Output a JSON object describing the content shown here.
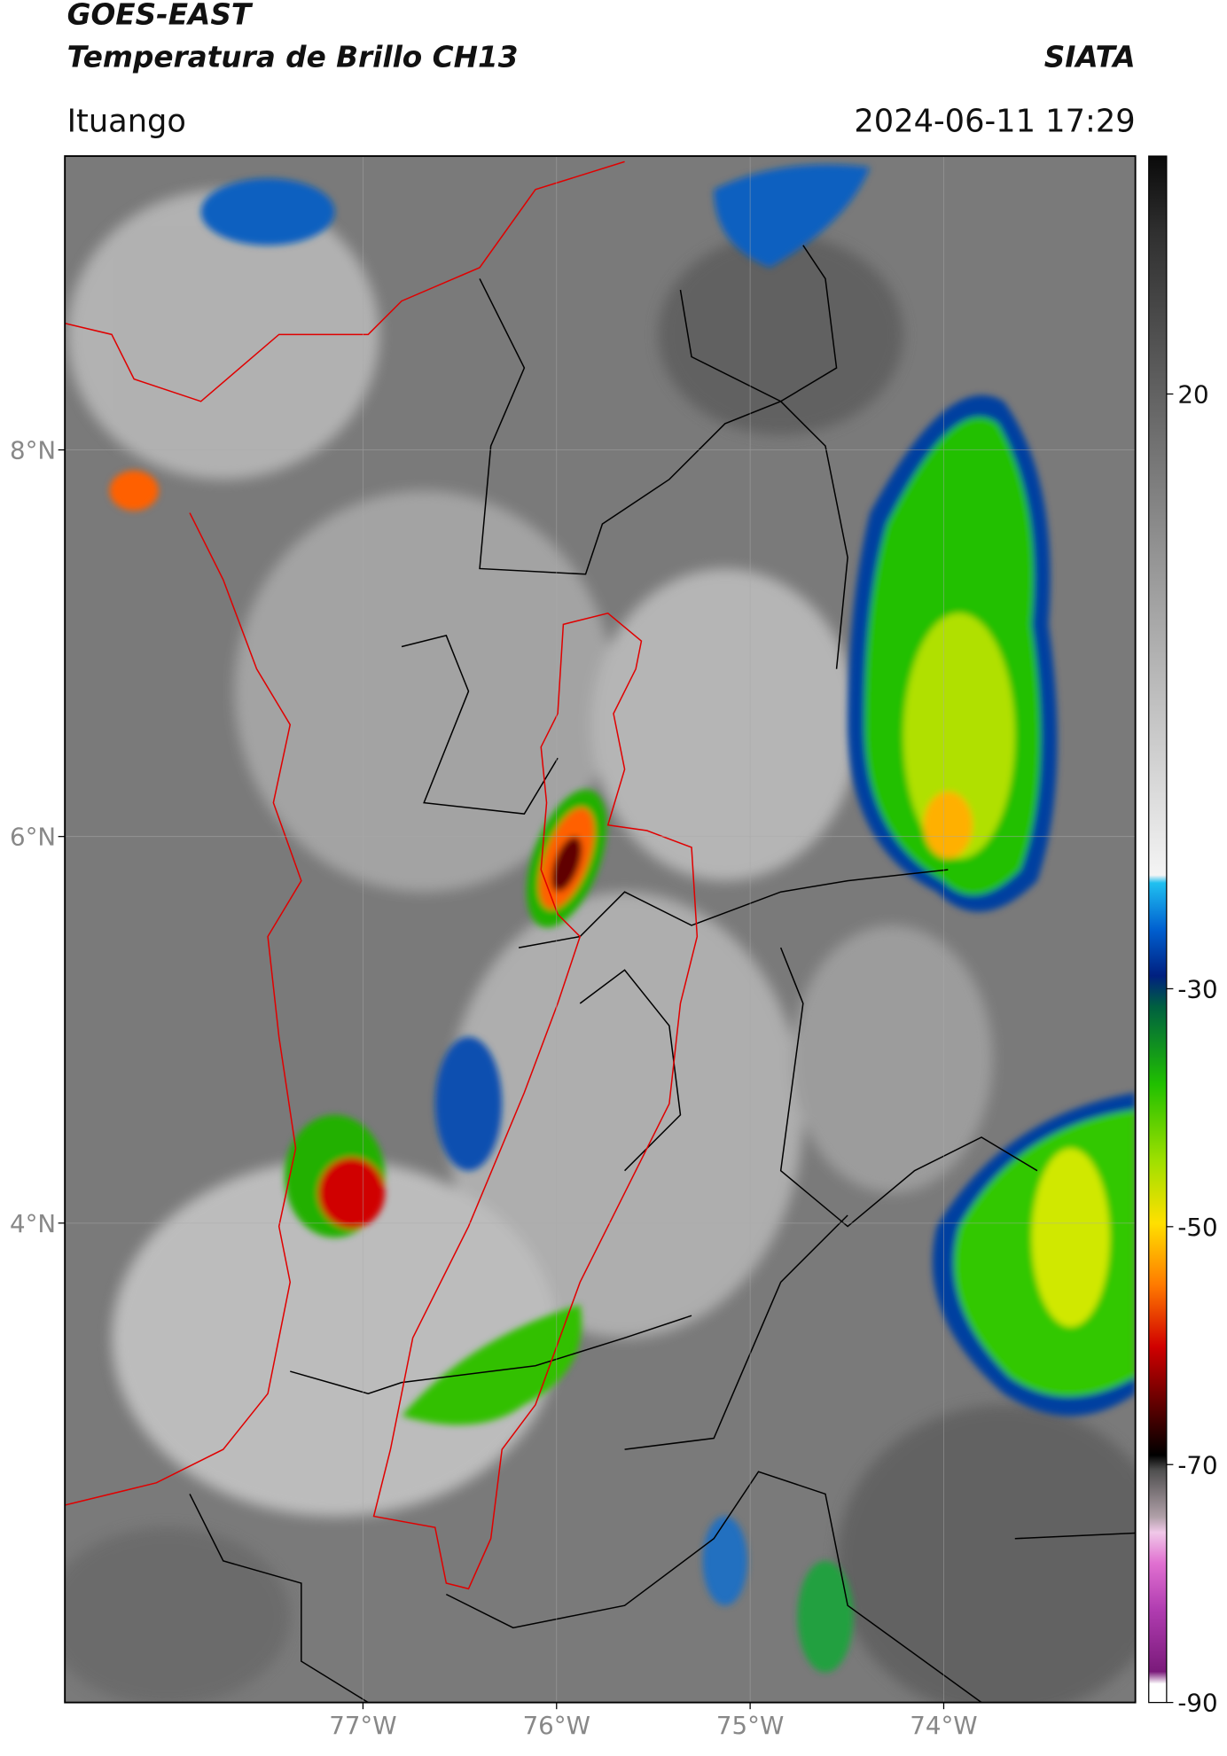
{
  "header": {
    "title": "GOES-EAST",
    "subtitle": "Temperatura de Brillo CH13",
    "source": "SIATA",
    "location": "Ituango",
    "datetime": "2024-06-11 17:29"
  },
  "map": {
    "xlim": [
      -78.54,
      -73.01
    ],
    "ylim": [
      1.52,
      9.52
    ],
    "xticks": [
      {
        "value": -77,
        "label": "77°W"
      },
      {
        "value": -76,
        "label": "76°W"
      },
      {
        "value": -75,
        "label": "75°W"
      },
      {
        "value": -74,
        "label": "74°W"
      }
    ],
    "yticks": [
      {
        "value": 8,
        "label": "8°N"
      },
      {
        "value": 6,
        "label": "6°N"
      },
      {
        "value": 4,
        "label": "4°N"
      }
    ],
    "colorbar": {
      "lim": [
        -90,
        40
      ],
      "ticks": [
        20,
        -30,
        -50,
        -70,
        -90
      ]
    }
  }
}
